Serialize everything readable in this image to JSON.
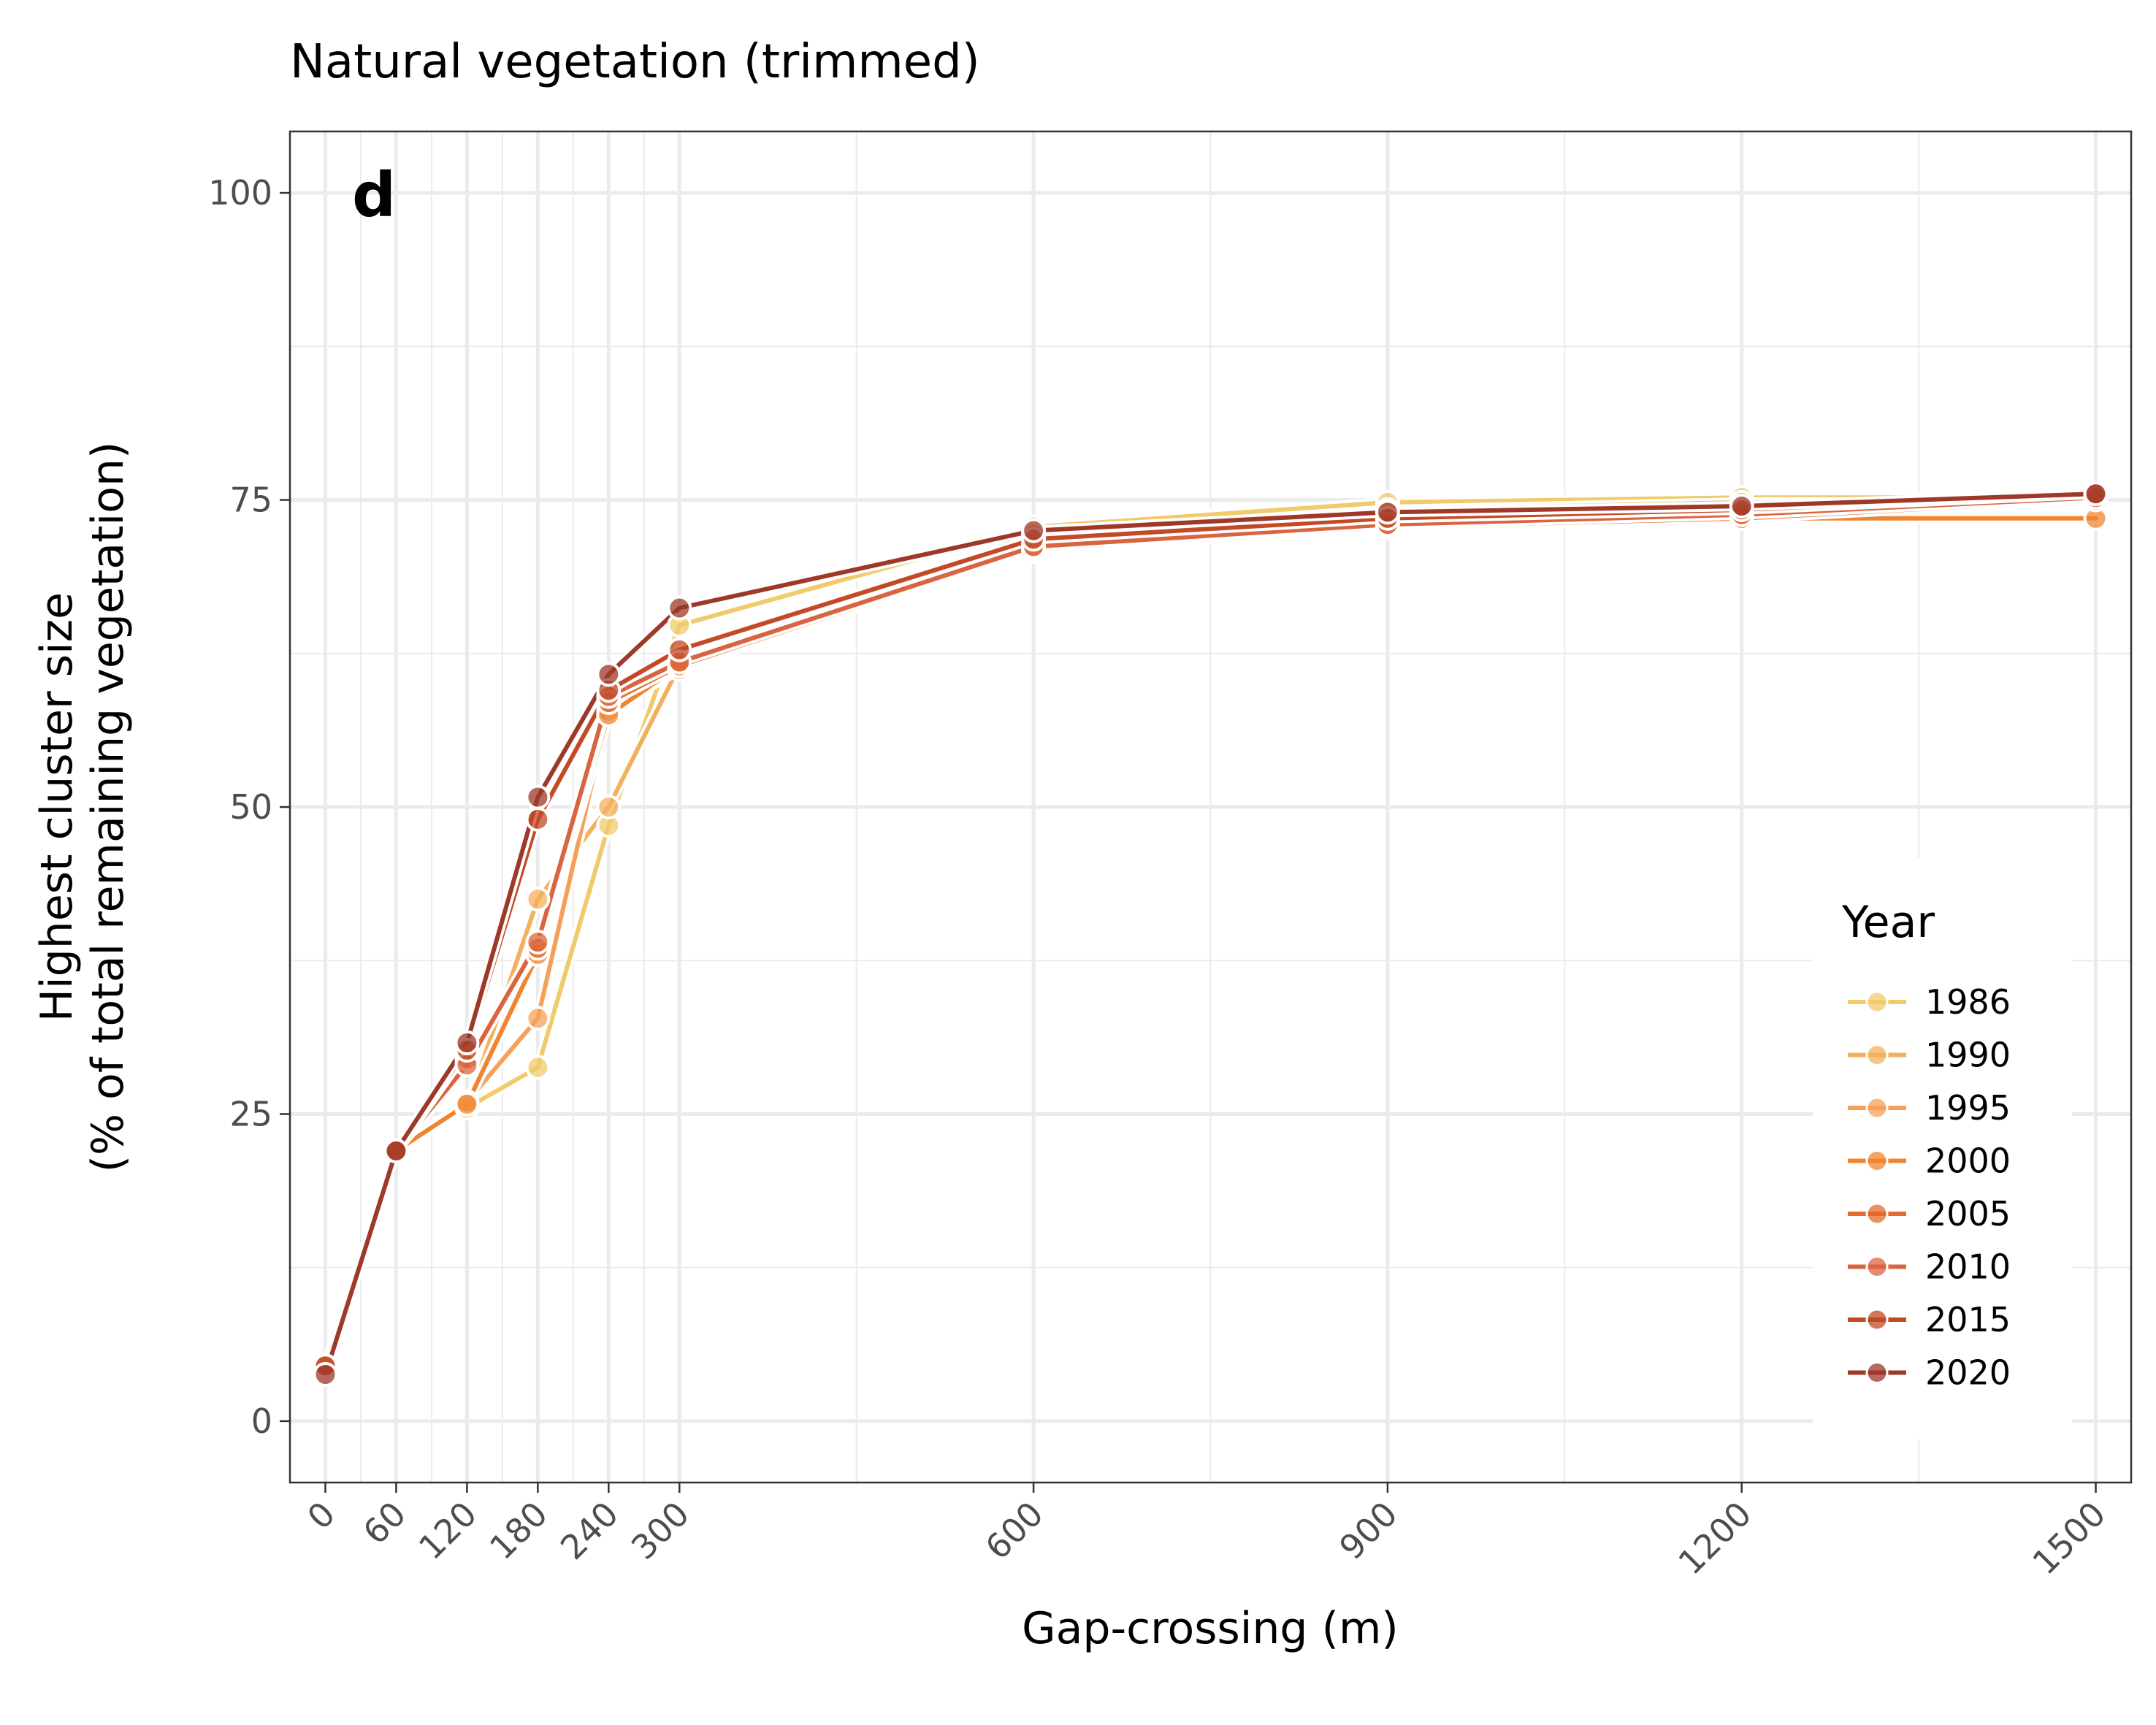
{
  "chart_data": {
    "type": "line",
    "title": "Natural vegetation (trimmed)",
    "panel_label": "d",
    "xlabel": "Gap-crossing (m)",
    "ylabel_line1": "Highest cluster size",
    "ylabel_line2": "(% of total remaining vegetation)",
    "x": [
      0,
      60,
      120,
      180,
      240,
      300,
      600,
      900,
      1200,
      1500
    ],
    "xlim": [
      -30,
      1530
    ],
    "ylim": [
      -5,
      105
    ],
    "x_ticks": [
      0,
      60,
      120,
      180,
      240,
      300,
      600,
      900,
      1200,
      1500
    ],
    "x_tick_labels": [
      "0",
      "60",
      "120",
      "180",
      "240",
      "300",
      "600",
      "900",
      "1200",
      "1500"
    ],
    "x_minor_ticks": [
      30,
      90,
      150,
      210,
      270,
      450,
      750,
      1050,
      1350
    ],
    "y_ticks": [
      0,
      25,
      50,
      75,
      100
    ],
    "y_tick_labels": [
      "0",
      "25",
      "50",
      "75",
      "100"
    ],
    "y_minor_ticks": [
      12.5,
      37.5,
      62.5,
      87.5
    ],
    "grid": true,
    "legend_title": "Year",
    "legend_position": "right",
    "series": [
      {
        "name": "1986",
        "color": "#F0CA6B",
        "values": [
          4.5,
          22.0,
          25.5,
          28.8,
          48.5,
          64.8,
          72.8,
          74.8,
          75.2,
          75.2
        ]
      },
      {
        "name": "1990",
        "color": "#F3B15F",
        "values": [
          4.5,
          22.0,
          25.5,
          42.5,
          50.0,
          61.5,
          72.2,
          74.2,
          74.8,
          74.8
        ]
      },
      {
        "name": "1995",
        "color": "#F5A059",
        "values": [
          4.5,
          22.0,
          26.0,
          32.8,
          57.8,
          61.2,
          71.5,
          73.5,
          74.0,
          75.0
        ]
      },
      {
        "name": "2000",
        "color": "#F08531",
        "values": [
          4.5,
          22.0,
          25.8,
          38.0,
          57.5,
          61.5,
          70.8,
          72.8,
          73.5,
          73.5
        ]
      },
      {
        "name": "2005",
        "color": "#E66A2C",
        "values": [
          4.5,
          22.0,
          29.5,
          38.5,
          58.5,
          61.5,
          71.0,
          72.8,
          73.5,
          75.0
        ]
      },
      {
        "name": "2010",
        "color": "#D96540",
        "values": [
          4.5,
          22.0,
          29.0,
          39.0,
          59.0,
          61.8,
          71.2,
          73.0,
          73.8,
          75.2
        ]
      },
      {
        "name": "2015",
        "color": "#C24A27",
        "values": [
          4.5,
          22.0,
          30.2,
          49.0,
          59.5,
          62.8,
          71.8,
          73.5,
          74.2,
          75.5
        ]
      },
      {
        "name": "2020",
        "color": "#9E3828",
        "values": [
          3.8,
          22.0,
          30.8,
          50.8,
          60.8,
          66.2,
          72.5,
          74.0,
          74.5,
          75.5
        ]
      }
    ]
  }
}
